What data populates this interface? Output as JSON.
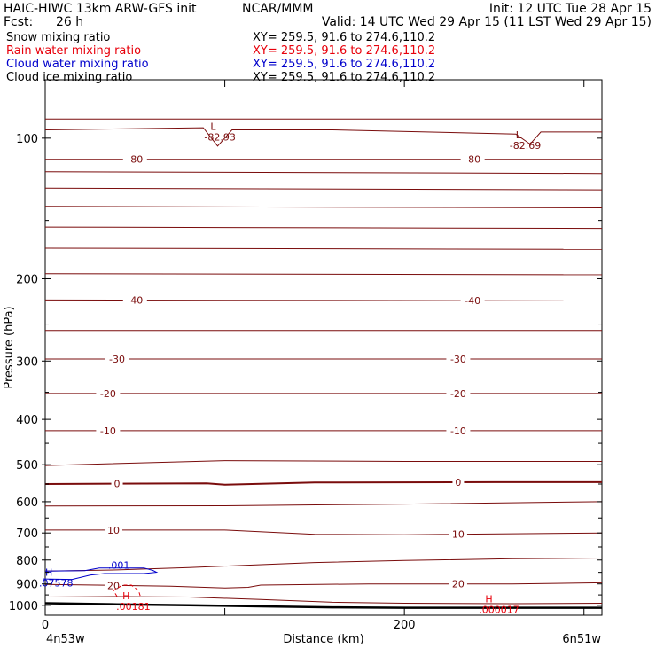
{
  "header": {
    "model": "HAIC-HIWC 13km ARW-GFS init",
    "org": "NCAR/MMM",
    "init": "Init: 12 UTC Tue 28 Apr 15",
    "fcst_label": "Fcst:",
    "fcst_value": "26 h",
    "valid": "Valid: 14 UTC Wed 29 Apr 15 (11 LST Wed 29 Apr 15)"
  },
  "fields": [
    {
      "name": "Snow mixing ratio",
      "xy": "XY= 259.5, 91.6 to 274.6,110.2",
      "color": "#000000"
    },
    {
      "name": "Rain water mixing ratio",
      "xy": "XY= 259.5, 91.6 to 274.6,110.2",
      "color": "#e8000b"
    },
    {
      "name": "Cloud water mixing ratio",
      "xy": "XY= 259.5, 91.6 to 274.6,110.2",
      "color": "#0000cc"
    },
    {
      "name": "Cloud ice mixing ratio",
      "xy": "XY= 259.5, 91.6 to 274.6,110.2",
      "color": "#000000"
    }
  ],
  "colors": {
    "temperature": "#7a0c0c",
    "rain": "#e8000b",
    "cloud_water": "#0000cc",
    "terrain": "#000000"
  },
  "chart_data": {
    "type": "line",
    "title": "HAIC-HIWC 13km ARW-GFS init",
    "xlabel": "Distance (km)",
    "ylabel": "Pressure (hPa)",
    "xlim": [
      0,
      310
    ],
    "ylim": [
      1050,
      75
    ],
    "y_scale": "log",
    "x_ticks": [
      0,
      100,
      200,
      300
    ],
    "x_tick_labels": [
      "0",
      "",
      "200",
      ""
    ],
    "y_ticks": [
      100,
      200,
      300,
      400,
      500,
      600,
      700,
      800,
      900,
      1000
    ],
    "y_tick_labels": [
      "100",
      "200",
      "300",
      "400",
      "500",
      "600",
      "700",
      "800",
      "900",
      "1000"
    ],
    "left_endpoint": "4n53w",
    "right_endpoint": "6n51w",
    "isotherms": [
      {
        "points": [
          [
            0,
            91
          ],
          [
            310,
            91
          ]
        ],
        "width": 1
      },
      {
        "points": [
          [
            0,
            96
          ],
          [
            88,
            95
          ],
          [
            96,
            104
          ],
          [
            104,
            96
          ],
          [
            160,
            96
          ],
          [
            262,
            98
          ],
          [
            270,
            103
          ],
          [
            276,
            97
          ],
          [
            310,
            97
          ]
        ],
        "width": 1
      },
      {
        "points": [
          [
            0,
            111
          ],
          [
            310,
            111
          ]
        ],
        "width": 1,
        "label": "-80",
        "label_x": [
          50,
          238
        ]
      },
      {
        "points": [
          [
            0,
            118
          ],
          [
            310,
            119
          ]
        ],
        "width": 1
      },
      {
        "points": [
          [
            0,
            128
          ],
          [
            310,
            129
          ]
        ],
        "width": 1
      },
      {
        "points": [
          [
            0,
            140
          ],
          [
            310,
            141
          ]
        ],
        "width": 1
      },
      {
        "points": [
          [
            0,
            155
          ],
          [
            310,
            156
          ]
        ],
        "width": 1
      },
      {
        "points": [
          [
            0,
            172
          ],
          [
            310,
            173
          ]
        ],
        "width": 1
      },
      {
        "points": [
          [
            0,
            195
          ],
          [
            310,
            196
          ]
        ],
        "width": 1
      },
      {
        "points": [
          [
            0,
            222
          ],
          [
            310,
            223
          ]
        ],
        "width": 1,
        "label": "-40",
        "label_x": [
          50,
          238
        ]
      },
      {
        "points": [
          [
            0,
            258
          ],
          [
            310,
            258
          ]
        ],
        "width": 1
      },
      {
        "points": [
          [
            0,
            297
          ],
          [
            310,
            297
          ]
        ],
        "width": 1,
        "label": "-30",
        "label_x": [
          40,
          230
        ]
      },
      {
        "points": [
          [
            0,
            352
          ],
          [
            310,
            352
          ]
        ],
        "width": 1,
        "label": "-20",
        "label_x": [
          35,
          230
        ]
      },
      {
        "points": [
          [
            0,
            423
          ],
          [
            310,
            423
          ]
        ],
        "width": 1,
        "label": "-10",
        "label_x": [
          35,
          230
        ]
      },
      {
        "points": [
          [
            0,
            502
          ],
          [
            100,
            490
          ],
          [
            200,
            492
          ],
          [
            310,
            492
          ]
        ],
        "width": 1
      },
      {
        "points": [
          [
            0,
            550
          ],
          [
            90,
            548
          ],
          [
            100,
            552
          ],
          [
            150,
            546
          ],
          [
            250,
            545
          ],
          [
            310,
            545
          ]
        ],
        "width": 2,
        "label": "0",
        "label_x": [
          40,
          230
        ]
      },
      {
        "points": [
          [
            0,
            613
          ],
          [
            100,
            612
          ],
          [
            200,
            607
          ],
          [
            310,
            600
          ]
        ],
        "width": 1
      },
      {
        "points": [
          [
            0,
            690
          ],
          [
            100,
            690
          ],
          [
            150,
            705
          ],
          [
            200,
            706
          ],
          [
            310,
            700
          ]
        ],
        "width": 1,
        "label": "10",
        "label_x": [
          38,
          230
        ]
      },
      {
        "points": [
          [
            0,
            845
          ],
          [
            40,
            840
          ],
          [
            80,
            830
          ],
          [
            150,
            810
          ],
          [
            200,
            802
          ],
          [
            260,
            795
          ],
          [
            310,
            792
          ]
        ],
        "width": 1
      },
      {
        "points": [
          [
            0,
            902
          ],
          [
            70,
            910
          ],
          [
            100,
            918
          ],
          [
            113,
            915
          ],
          [
            120,
            905
          ],
          [
            180,
            900
          ],
          [
            260,
            900
          ],
          [
            310,
            895
          ]
        ],
        "width": 1,
        "label": "20",
        "label_x": [
          38,
          230
        ]
      },
      {
        "points": [
          [
            0,
            960
          ],
          [
            40,
            958
          ],
          [
            80,
            960
          ],
          [
            120,
            972
          ],
          [
            160,
            985
          ],
          [
            200,
            990
          ],
          [
            260,
            992
          ],
          [
            310,
            990
          ]
        ],
        "width": 1
      }
    ],
    "terrain": [
      [
        0,
        990
      ],
      [
        40,
        995
      ],
      [
        80,
        1000
      ],
      [
        120,
        1005
      ],
      [
        160,
        1010
      ],
      [
        200,
        1012
      ],
      [
        260,
        1012
      ],
      [
        310,
        1012
      ]
    ],
    "cloud_water_contour": {
      "points": [
        [
          -1,
          878
        ],
        [
          15,
          880
        ],
        [
          25,
          862
        ],
        [
          33,
          855
        ],
        [
          55,
          855
        ],
        [
          62,
          850
        ],
        [
          60,
          842
        ],
        [
          55,
          832
        ],
        [
          30,
          832
        ],
        [
          22,
          843
        ],
        [
          0,
          845
        ]
      ],
      "label": ".001",
      "label_x": 35
    },
    "rain_contour": {
      "points": [
        [
          40,
          957
        ],
        [
          38,
          930
        ],
        [
          43,
          905
        ],
        [
          48,
          905
        ],
        [
          52,
          930
        ],
        [
          53,
          958
        ]
      ],
      "dashed": true
    },
    "extrema": [
      {
        "type": "L",
        "value": "-82.93",
        "x": 92,
        "p": 96,
        "color": "temperature"
      },
      {
        "type": "L",
        "value": "-82.69",
        "x": 262,
        "p": 100,
        "color": "temperature"
      },
      {
        "type": "H",
        "value": ".07578",
        "x": 0,
        "p": 865,
        "color": "cloud_water"
      },
      {
        "type": "H",
        "value": ".00181",
        "x": 43,
        "p": 970,
        "color": "rain"
      },
      {
        "type": "H",
        "value": ".000017",
        "x": 245,
        "p": 985,
        "color": "rain"
      }
    ]
  }
}
